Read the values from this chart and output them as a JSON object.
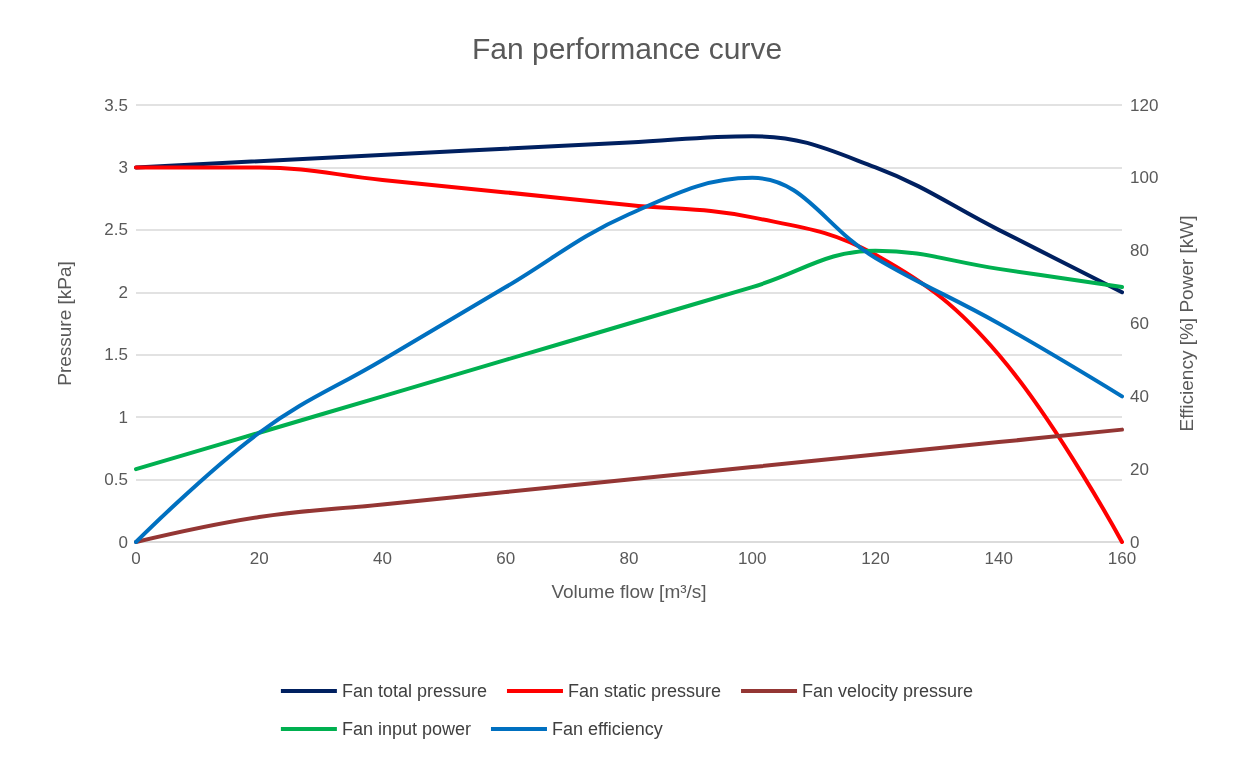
{
  "chart_data": {
    "type": "line",
    "title": "Fan performance curve",
    "xlabel": "Volume flow [m³/s]",
    "ylabel": "Pressure [kPa]",
    "y2label": "Efficiency [%] Power [kW]",
    "x": [
      0,
      20,
      40,
      60,
      80,
      100,
      120,
      140,
      160
    ],
    "series": [
      {
        "name": "Fan total pressure",
        "color": "#002060",
        "x": [
          0,
          80,
          100,
          120,
          140,
          160
        ],
        "values": [
          3,
          3.2,
          3.25,
          3,
          2.5,
          2
        ]
      },
      {
        "name": "Fan static pressure",
        "color": "#ff0000",
        "values": [
          3,
          3,
          2.9,
          2.8,
          2.7,
          2.6,
          2.3,
          1.5,
          0
        ]
      },
      {
        "name": "Fan velocity pressure",
        "color": "#943634",
        "values": [
          0,
          0.2,
          0.3,
          0.4,
          0.5,
          0.6,
          0.7,
          0.8,
          0.9
        ]
      },
      {
        "name": "Fan input power",
        "color": "#00b050",
        "axis": "y2",
        "values": [
          20,
          30,
          40,
          50,
          60,
          70,
          80,
          75,
          70
        ]
      },
      {
        "name": "Fan efficiency",
        "color": "#0070c0",
        "axis": "y2",
        "values": [
          0,
          30,
          50,
          70,
          90,
          100,
          78,
          60,
          40
        ]
      }
    ],
    "xlim": [
      0,
      160
    ],
    "xticks": [
      0,
      20,
      40,
      60,
      80,
      100,
      120,
      140,
      160
    ],
    "ylim": [
      0,
      3.5
    ],
    "yticks": [
      0,
      0.5,
      1,
      1.5,
      2,
      2.5,
      3,
      3.5
    ],
    "y2lim": [
      0,
      120
    ],
    "y2ticks": [
      0,
      20,
      40,
      60,
      80,
      100,
      120
    ],
    "grid": "y",
    "legend": "bottom",
    "marker": "none",
    "line_style": "solid"
  }
}
